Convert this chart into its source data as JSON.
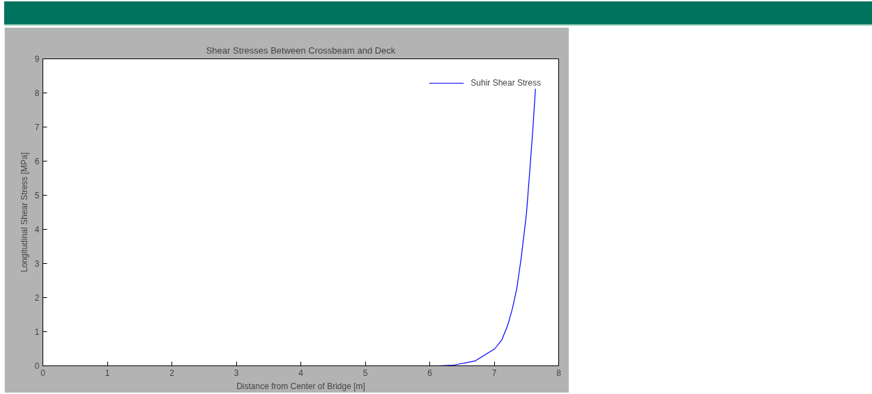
{
  "chart_data": {
    "type": "line",
    "title": "Shear Stresses Between Crossbeam and Deck",
    "xlabel": "Distance from Center of Bridge [m]",
    "ylabel": "Longitudinal Shear Stress [MPa]",
    "x": [
      6.13,
      6.37,
      6.7,
      7.01,
      7.12,
      7.21,
      7.28,
      7.35,
      7.42,
      7.5,
      7.55,
      7.6,
      7.64
    ],
    "series": [
      {
        "name": "Suhir Shear Stress",
        "color": "#0000ff",
        "values": [
          0.0,
          0.02,
          0.14,
          0.5,
          0.77,
          1.19,
          1.66,
          2.26,
          3.18,
          4.46,
          5.67,
          6.95,
          8.12
        ]
      }
    ],
    "xlim": [
      0,
      8
    ],
    "ylim": [
      0,
      9
    ],
    "xticks": [
      0,
      1,
      2,
      3,
      4,
      5,
      6,
      7,
      8
    ],
    "yticks": [
      0,
      1,
      2,
      3,
      4,
      5,
      6,
      7,
      8,
      9
    ],
    "grid": false,
    "legend": "top right",
    "marker": "none",
    "line_style": "solid"
  }
}
